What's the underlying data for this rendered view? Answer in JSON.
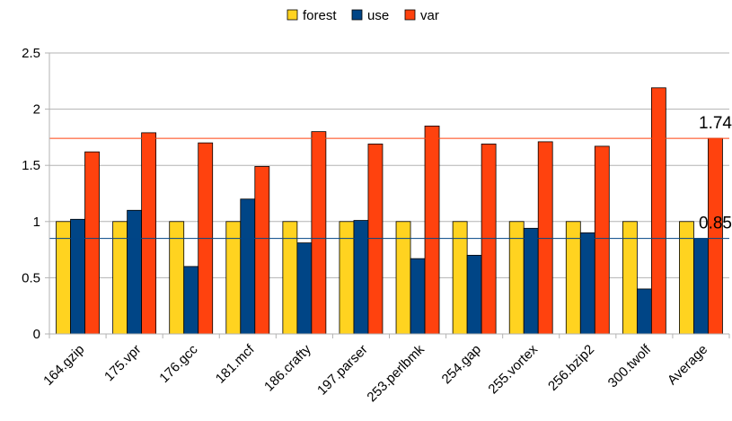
{
  "chart_data": {
    "type": "bar",
    "categories": [
      "164.gzip",
      "175.vpr",
      "176.gcc",
      "181.mcf",
      "186.crafty",
      "197.parser",
      "253.perlbmk",
      "254.gap",
      "255.vortex",
      "256.bzip2",
      "300.twolf",
      "Average"
    ],
    "series": [
      {
        "name": "forest",
        "color": "#ffd320",
        "values": [
          1,
          1,
          1,
          1,
          1,
          1,
          1,
          1,
          1,
          1,
          1,
          1
        ]
      },
      {
        "name": "use",
        "color": "#004586",
        "values": [
          1.02,
          1.1,
          0.6,
          1.2,
          0.81,
          1.01,
          0.67,
          0.7,
          0.94,
          0.9,
          0.4,
          0.85
        ]
      },
      {
        "name": "var",
        "color": "#ff420e",
        "values": [
          1.62,
          1.79,
          1.7,
          1.49,
          1.8,
          1.69,
          1.85,
          1.69,
          1.71,
          1.67,
          2.19,
          1.74
        ]
      }
    ],
    "ylim": [
      0,
      2.5
    ],
    "yticks": [
      "0",
      "0.5",
      "1",
      "1.5",
      "2",
      "2.5"
    ],
    "grid": true,
    "legend_position": "top-center",
    "reference_lines": [
      {
        "value": 1.74,
        "label": "1.74",
        "color": "#ff420e"
      },
      {
        "value": 0.85,
        "label": "0.85",
        "color": "#004586"
      }
    ]
  }
}
